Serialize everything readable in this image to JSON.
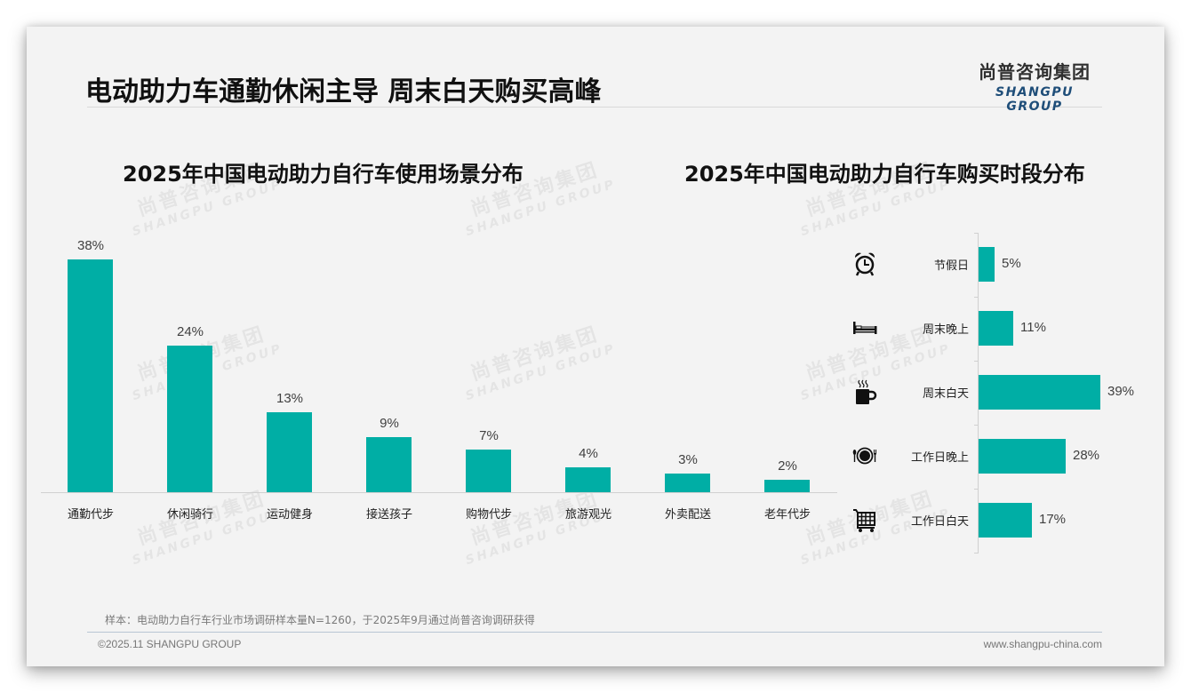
{
  "header": {
    "title": "电动助力车通勤休闲主导 周末白天购买高峰",
    "logo_cn": "尚普咨询集团",
    "logo_en": "SHANGPU GROUP"
  },
  "watermark": {
    "cn": "尚普咨询集团",
    "en": "SHANGPU GROUP"
  },
  "colors": {
    "bar": "#00aea5",
    "logo_en": "#1f4e79"
  },
  "chart_data": [
    {
      "type": "bar",
      "title": "2025年中国电动助力自行车使用场景分布",
      "categories": [
        "通勤代步",
        "休闲骑行",
        "运动健身",
        "接送孩子",
        "购物代步",
        "旅游观光",
        "外卖配送",
        "老年代步"
      ],
      "values": [
        38,
        24,
        13,
        9,
        7,
        4,
        3,
        2
      ],
      "value_labels": [
        "38%",
        "24%",
        "13%",
        "9%",
        "7%",
        "4%",
        "3%",
        "2%"
      ],
      "xlabel": "",
      "ylabel": "",
      "unit": "%",
      "grid": false,
      "orientation": "vertical"
    },
    {
      "type": "bar",
      "title": "2025年中国电动助力自行车购买时段分布",
      "categories": [
        "节假日",
        "周末晚上",
        "周末白天",
        "工作日晚上",
        "工作日白天"
      ],
      "values": [
        5,
        11,
        39,
        28,
        17
      ],
      "value_labels": [
        "5%",
        "11%",
        "39%",
        "28%",
        "17%"
      ],
      "icons": [
        "alarm-clock-icon",
        "bed-icon",
        "hot-coffee-icon",
        "dinner-plate-icon",
        "shopping-cart-icon"
      ],
      "xlabel": "",
      "ylabel": "",
      "unit": "%",
      "grid": false,
      "orientation": "horizontal"
    }
  ],
  "footer": {
    "note": "样本：电动助力自行车行业市场调研样本量N=1260，于2025年9月通过尚普咨询调研获得",
    "copyright": "©2025.11 SHANGPU GROUP",
    "website": "www.shangpu-china.com"
  }
}
